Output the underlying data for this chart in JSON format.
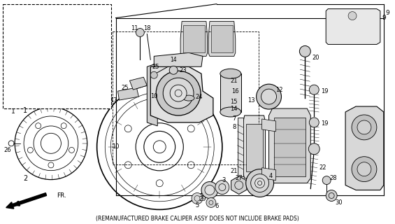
{
  "footer_text": "(REMANUFACTURED BRAKE CALIPER ASSY DOES NOT INCLUDE BRAKE PADS)",
  "background_color": "#ffffff",
  "line_color": "#000000"
}
